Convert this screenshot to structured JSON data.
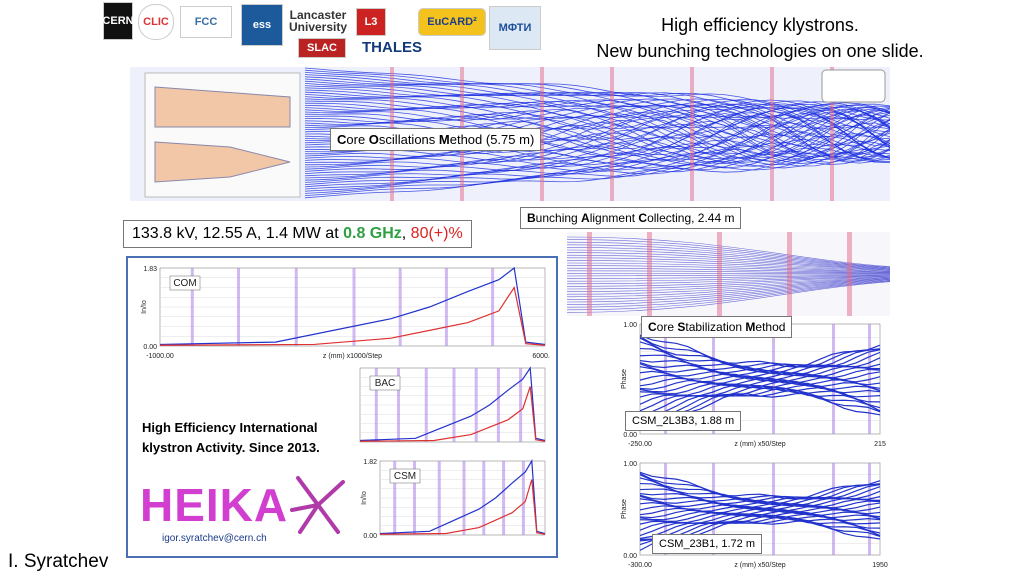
{
  "header": {
    "title_lines": [
      "High efficiency klystrons.",
      "New bunching technologies on one slide."
    ]
  },
  "logos": [
    "CERN",
    "CLIC",
    "FCC",
    "ess",
    "Lancaster University",
    "SLAC",
    "L3",
    "THALES",
    "EuCARD²",
    "МФТИ"
  ],
  "com_banner": [
    "C",
    "ore ",
    "O",
    "scillations ",
    "M",
    "ethod  (5.75 m)"
  ],
  "params": {
    "text": "133.8 kV, 12.55 A, 1.4 MW at ",
    "frequency": "0.8 GHz",
    "separator": ", ",
    "efficiency": "80(+)%"
  },
  "bac_banner": [
    "B",
    "unching ",
    "A",
    "lignment  ",
    "C",
    "ollecting, 2.44 m"
  ],
  "csm_banner": [
    "C",
    "ore ",
    "S",
    "tabilization ",
    "M",
    "ethod"
  ],
  "plots": {
    "com": {
      "tag": "COM",
      "y_top": "1.83",
      "y_bottom": "0.00",
      "y_label": "In/Io",
      "x_left": "-1000.00",
      "x_label": "z (mm)  x1000/Step",
      "x_right": "6000.00"
    },
    "bac": {
      "tag": "BAC"
    },
    "csm": {
      "tag": "CSM",
      "y_top": "1.82",
      "y_bottom": "0.00",
      "y_label": "In/Io"
    },
    "csm_a": {
      "caption": "CSM_2L3B3, 1.88 m",
      "y_top": "1.00",
      "y_bottom": "0.00",
      "y_label": "Phase",
      "x_left": "-250.00",
      "x_label": "z (mm)  x50/Step",
      "x_right": "215"
    },
    "csm_b": {
      "caption": "CSM_23B1, 1.72 m",
      "y_top": "1.00",
      "y_bottom": "0.00",
      "y_label": "Phase",
      "x_left": "-300.00",
      "x_label": "z (mm)  x50/Step",
      "x_right": "1950"
    }
  },
  "heika": {
    "description": "High Efficiency International klystron Activity. Since 2013.",
    "logo": "HEIKA",
    "email": "igor.syratchev@cern.ch"
  },
  "author": "I. Syratchev"
}
